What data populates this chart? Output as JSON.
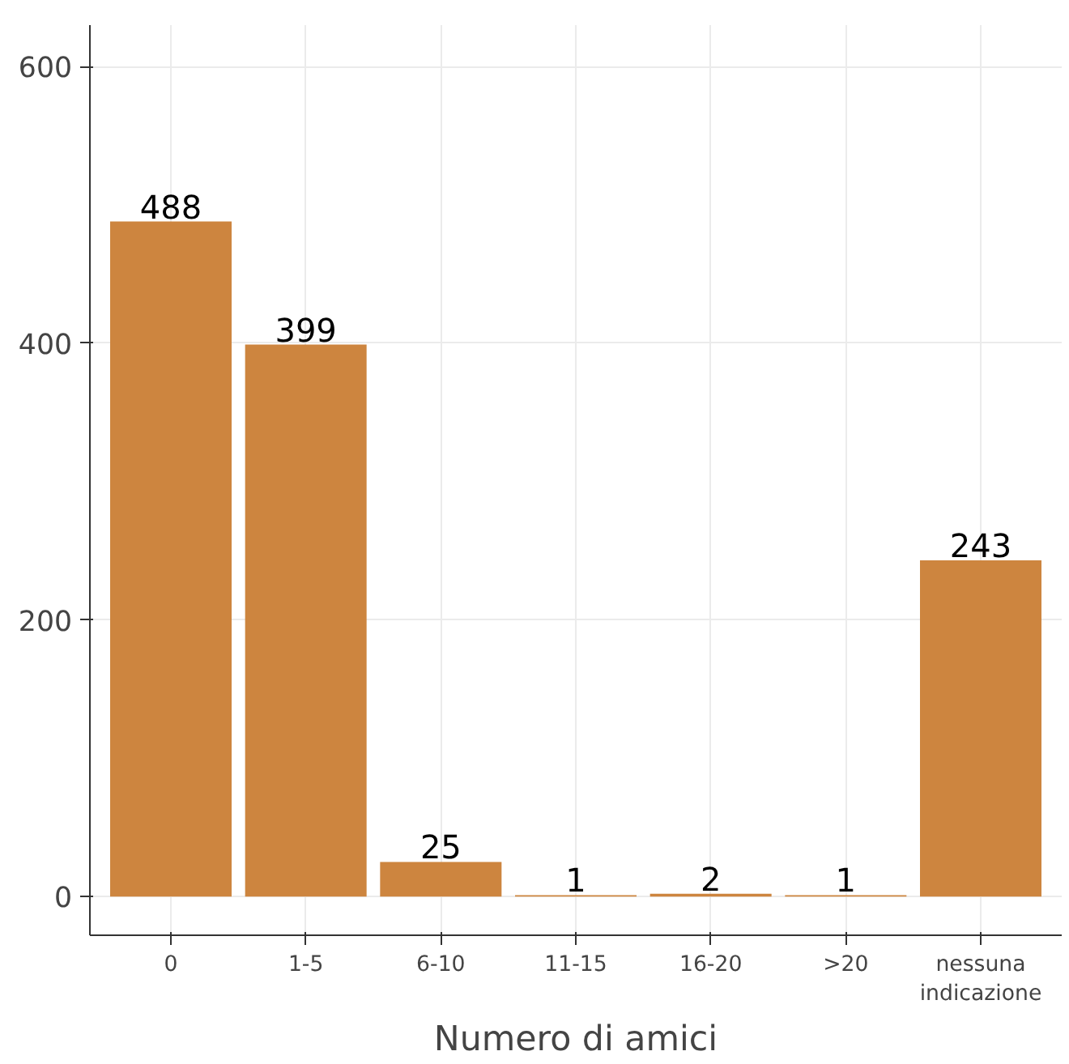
{
  "chart_data": {
    "type": "bar",
    "xlabel": "Numero di amici",
    "categories": [
      "0",
      "1-5",
      "6-10",
      "11-15",
      "16-20",
      ">20",
      "nessuna\nindicazione"
    ],
    "values": [
      488,
      399,
      25,
      1,
      2,
      1,
      243
    ],
    "color": "#cd853f",
    "ylim": [
      -28,
      630
    ],
    "yticks": [
      0,
      200,
      400,
      600
    ],
    "grid": true,
    "data_labels": true
  }
}
